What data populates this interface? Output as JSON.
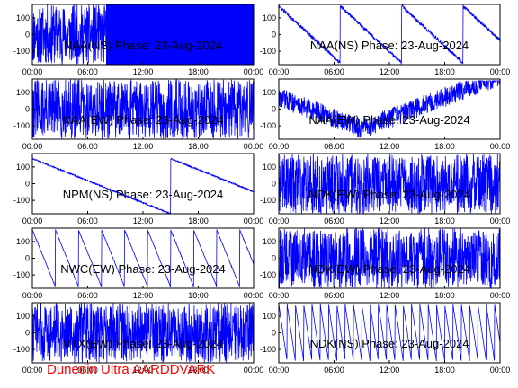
{
  "footer": "Dunedin Ultra AARDDVARK",
  "colors": {
    "trace": "#0000ff",
    "footer": "#ff0000",
    "axes": "#000000"
  },
  "chart_data": [
    {
      "type": "line",
      "title": "NAA(NS) Phase: 23-Aug-2024",
      "pattern": "dense_early_then_solid",
      "ylim": [
        -180,
        180
      ],
      "yticks": [
        "100",
        "0",
        "-100"
      ],
      "xticks": [
        "00:00",
        "06:00",
        "12:00",
        "18:00",
        "00:00"
      ],
      "xlim_hours": [
        0,
        24
      ]
    },
    {
      "type": "line",
      "title": "NAA(NS) Phase: 23-Aug-2024",
      "pattern": "sawtooth_falling",
      "ylim": [
        -180,
        180
      ],
      "yticks": [
        "100",
        "0",
        "-100"
      ],
      "xticks": [
        "00:00",
        "06:00",
        "12:00",
        "18:00",
        "00:00"
      ],
      "xlim_hours": [
        0,
        24
      ]
    },
    {
      "type": "line",
      "title": "NAA(EW) Phase: 23-Aug-2024",
      "pattern": "dense_noise",
      "ylim": [
        -180,
        180
      ],
      "yticks": [
        "100",
        "0",
        "-100"
      ],
      "xticks": [
        "00:00",
        "06:00",
        "12:00",
        "18:00",
        "00:00"
      ],
      "xlim_hours": [
        0,
        24
      ]
    },
    {
      "type": "line",
      "title": "NAA(EW) Phase: 23-Aug-2024",
      "pattern": "noisy_dip",
      "ylim": [
        -180,
        180
      ],
      "yticks": [
        "100",
        "0",
        "-100"
      ],
      "xticks": [
        "00:00",
        "06:00",
        "12:00",
        "18:00",
        "00:00"
      ],
      "xlim_hours": [
        0,
        24
      ]
    },
    {
      "type": "line",
      "title": "NPM(NS) Phase: 23-Aug-2024",
      "pattern": "slow_drift",
      "ylim": [
        -180,
        180
      ],
      "yticks": [
        "100",
        "0",
        "-100"
      ],
      "xticks": [
        "00:00",
        "06:00",
        "12:00",
        "18:00",
        "00:00"
      ],
      "xlim_hours": [
        0,
        24
      ]
    },
    {
      "type": "line",
      "title": "NDK(EW) Phase: 23-Aug-2024",
      "pattern": "dense_noise",
      "ylim": [
        -180,
        180
      ],
      "yticks": [
        "100",
        "0",
        "-100"
      ],
      "xticks": [
        "00:00",
        "06:00",
        "12:00",
        "18:00",
        "00:00"
      ],
      "xlim_hours": [
        0,
        24
      ]
    },
    {
      "type": "line",
      "title": "NWC(EW) Phase: 23-Aug-2024",
      "pattern": "sawtooth_slow",
      "ylim": [
        -180,
        180
      ],
      "yticks": [
        "100",
        "0",
        "-100"
      ],
      "xticks": [
        "00:00",
        "06:00",
        "12:00",
        "18:00",
        "00:00"
      ],
      "xlim_hours": [
        0,
        24
      ]
    },
    {
      "type": "line",
      "title": "NDK(EW) Phase: 23-Aug-2024",
      "pattern": "dense_noise",
      "ylim": [
        -180,
        180
      ],
      "yticks": [
        "100",
        "0",
        "-100"
      ],
      "xticks": [
        "00:00",
        "06:00",
        "12:00",
        "18:00",
        "00:00"
      ],
      "xlim_hours": [
        0,
        24
      ]
    },
    {
      "type": "line",
      "title": "VTX(EW) Phase: 23-Aug-2024",
      "pattern": "dense_noise",
      "ylim": [
        -180,
        180
      ],
      "yticks": [
        "100",
        "0",
        "-100"
      ],
      "xticks": [
        "00:00",
        "06:00",
        "12:00",
        "18:00",
        "00:00"
      ],
      "xlim_hours": [
        0,
        24
      ]
    },
    {
      "type": "line",
      "title": "NDK(NS) Phase: 23-Aug-2024",
      "pattern": "sawtooth_fast",
      "ylim": [
        -180,
        180
      ],
      "yticks": [
        "100",
        "0",
        "-100"
      ],
      "xticks": [
        "00:00",
        "06:00",
        "12:00",
        "18:00",
        "00:00"
      ],
      "xlim_hours": [
        0,
        24
      ]
    }
  ]
}
